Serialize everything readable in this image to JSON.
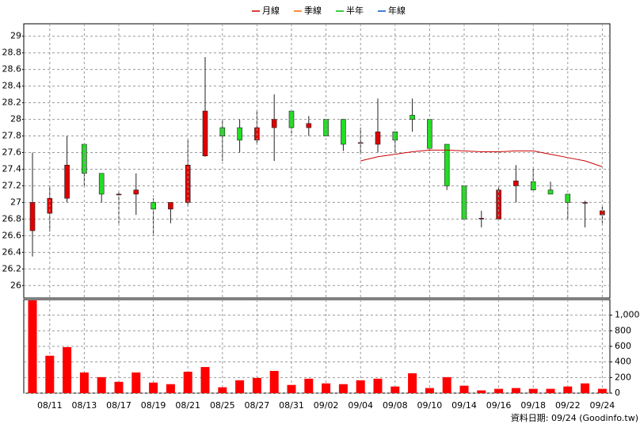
{
  "chart_data": [
    {
      "type": "candlestick",
      "legend": "top",
      "up_color": "#e00000",
      "down_color": "#22dd22",
      "outline": "#222",
      "open": [
        26.66,
        26.87,
        27.05,
        27.7,
        27.35,
        27.1,
        27.1,
        27.0,
        26.92,
        27.0,
        27.56,
        27.9,
        27.9,
        27.75,
        27.9,
        28.1,
        27.9,
        28.0,
        28.0,
        27.72,
        27.7,
        27.85,
        28.05,
        28.0,
        27.7,
        27.2,
        26.81,
        26.8,
        27.2,
        27.25,
        27.15,
        27.1,
        27.0,
        26.85
      ],
      "high": [
        27.6,
        27.2,
        27.8,
        27.7,
        27.35,
        27.12,
        27.35,
        27.05,
        27.0,
        27.75,
        28.75,
        28.0,
        28.0,
        28.1,
        28.3,
        28.1,
        28.04,
        28.0,
        28.0,
        27.9,
        28.25,
        27.85,
        28.25,
        28.0,
        27.7,
        27.2,
        26.9,
        27.2,
        27.45,
        27.4,
        27.25,
        27.1,
        27.02,
        26.95
      ],
      "low": [
        26.35,
        26.65,
        27.0,
        27.2,
        27.0,
        26.75,
        26.85,
        26.6,
        26.75,
        26.95,
        27.55,
        27.5,
        27.6,
        27.7,
        27.5,
        27.8,
        27.8,
        27.8,
        27.62,
        27.58,
        27.6,
        27.6,
        27.85,
        27.62,
        27.15,
        26.8,
        26.7,
        26.8,
        27.0,
        27.15,
        27.1,
        26.8,
        26.7,
        26.75
      ],
      "close": [
        27.0,
        27.05,
        27.45,
        27.35,
        27.1,
        27.1,
        27.15,
        26.92,
        27.0,
        27.45,
        28.1,
        27.8,
        27.75,
        27.9,
        28.0,
        27.9,
        27.95,
        27.8,
        27.7,
        27.72,
        27.85,
        27.75,
        28.0,
        27.65,
        27.2,
        26.8,
        26.81,
        27.15,
        27.26,
        27.15,
        27.1,
        27.0,
        27.0,
        26.9
      ],
      "series": [
        {
          "name": "月線",
          "color": "#cc0000",
          "values": [
            null,
            null,
            null,
            null,
            null,
            null,
            null,
            null,
            null,
            null,
            null,
            null,
            null,
            null,
            null,
            null,
            null,
            null,
            null,
            27.5,
            27.55,
            27.58,
            27.61,
            27.63,
            27.63,
            27.62,
            27.61,
            27.61,
            27.62,
            27.62,
            27.58,
            27.54,
            27.5,
            27.43
          ]
        },
        {
          "name": "季線",
          "color": "#ff6600",
          "values": [
            null,
            null,
            null,
            null,
            null,
            null,
            null,
            null,
            null,
            null,
            null,
            null,
            null,
            null,
            null,
            null,
            null,
            null,
            null,
            null,
            null,
            null,
            null,
            null,
            null,
            null,
            null,
            null,
            null,
            null,
            null,
            null,
            null,
            null
          ]
        },
        {
          "name": "半年",
          "color": "#00bb00",
          "values": [
            null,
            null,
            null,
            null,
            null,
            null,
            null,
            null,
            null,
            null,
            null,
            null,
            null,
            null,
            null,
            null,
            null,
            null,
            null,
            null,
            null,
            null,
            null,
            null,
            null,
            null,
            null,
            null,
            null,
            null,
            null,
            null,
            null,
            null
          ]
        },
        {
          "name": "年線",
          "color": "#0055cc",
          "values": [
            null,
            null,
            null,
            null,
            null,
            null,
            null,
            null,
            null,
            null,
            null,
            null,
            null,
            null,
            null,
            null,
            null,
            null,
            null,
            null,
            null,
            null,
            null,
            null,
            null,
            null,
            null,
            null,
            null,
            null,
            null,
            null,
            null,
            null
          ]
        }
      ],
      "ylim": [
        25.85,
        29.15
      ],
      "yticks": [
        26,
        26.2,
        26.4,
        26.6,
        26.8,
        27,
        27.2,
        27.4,
        27.6,
        27.8,
        28,
        28.2,
        28.4,
        28.6,
        28.8,
        29
      ],
      "grid": true
    },
    {
      "type": "bar",
      "color": "#ff0000",
      "categories": [
        null,
        "08/11",
        null,
        "08/13",
        null,
        "08/17",
        null,
        "08/19",
        null,
        "08/21",
        null,
        "08/25",
        null,
        "08/27",
        null,
        "08/31",
        null,
        "09/02",
        null,
        "09/04",
        null,
        "09/08",
        null,
        "09/10",
        null,
        "09/14",
        null,
        "09/16",
        null,
        "09/18",
        null,
        "09/22",
        null,
        "09/24"
      ],
      "values": [
        1190,
        480,
        590,
        265,
        205,
        145,
        265,
        135,
        115,
        275,
        335,
        75,
        165,
        195,
        285,
        105,
        185,
        125,
        115,
        165,
        185,
        85,
        255,
        65,
        205,
        95,
        35,
        55,
        65,
        55,
        55,
        85,
        125,
        55
      ],
      "ylim": [
        0,
        1200
      ],
      "yticks": [
        0,
        200,
        400,
        600,
        800,
        {
          "value": 1000,
          "label": "1,000"
        }
      ],
      "grid": true,
      "footer": "資料日期: 09/24  (Goodinfo.tw)"
    }
  ]
}
